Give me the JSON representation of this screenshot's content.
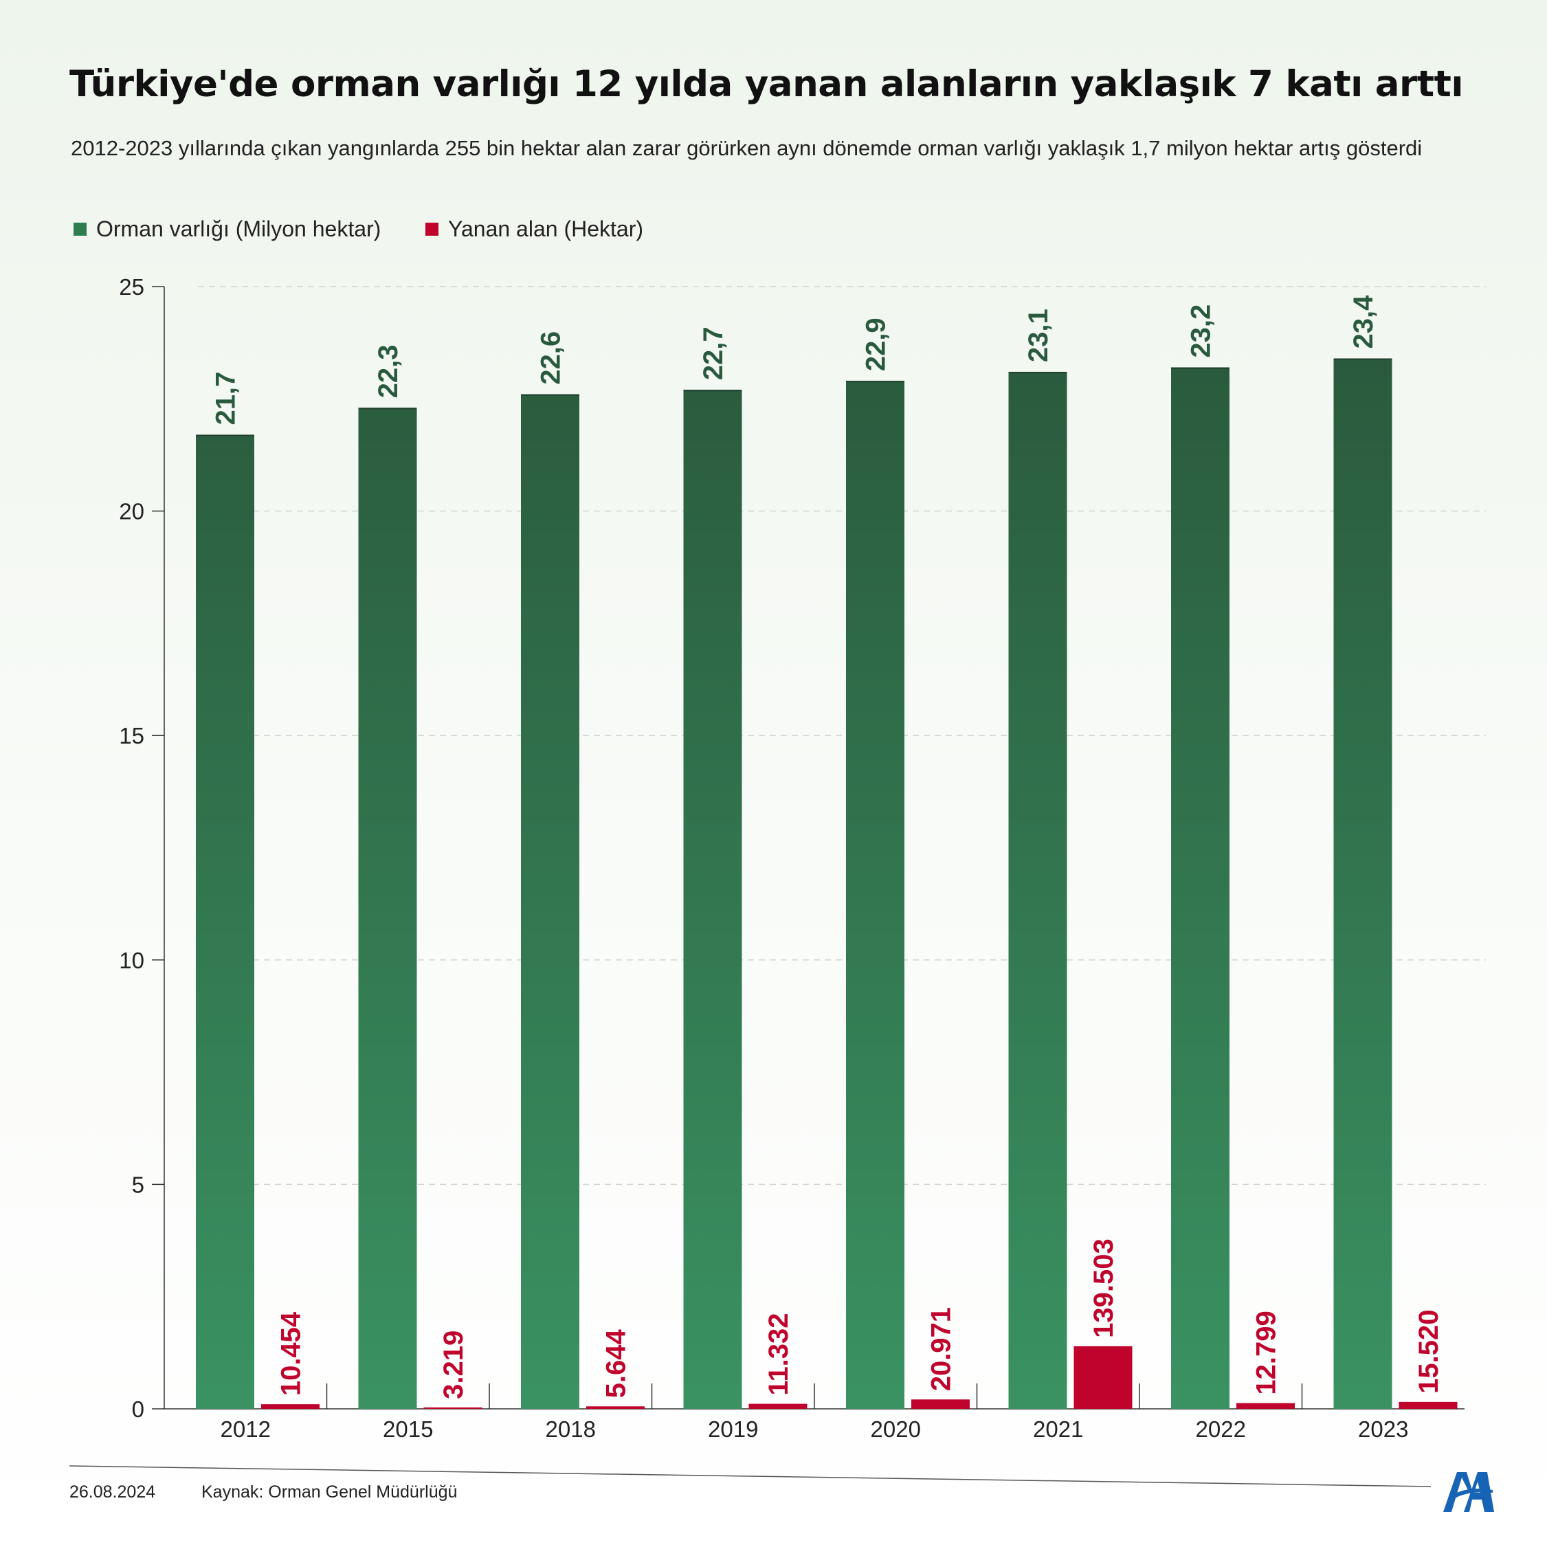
{
  "chart_data": {
    "type": "bar",
    "title": "Türkiye'de orman varlığı 12 yılda yanan alanların yaklaşık 7 katı arttı",
    "subtitle": "2012-2023 yıllarında çıkan yangınlarda 255 bin hektar alan zarar görürken aynı dönemde orman varlığı yaklaşık 1,7 milyon hektar artış gösterdi",
    "categories": [
      "2012",
      "2015",
      "2018",
      "2019",
      "2020",
      "2021",
      "2022",
      "2023"
    ],
    "series": [
      {
        "name": "Orman varlığı (Milyon hektar)",
        "values": [
          21.7,
          22.3,
          22.6,
          22.7,
          22.9,
          23.1,
          23.2,
          23.4
        ],
        "labels": [
          "21,7",
          "22,3",
          "22,6",
          "22,7",
          "22,9",
          "23,1",
          "23,2",
          "23,4"
        ],
        "color": "#2e6b45"
      },
      {
        "name": "Yanan alan (Hektar)",
        "values": [
          10454,
          3219,
          5644,
          11332,
          20971,
          139503,
          12799,
          15520
        ],
        "labels": [
          "10.454",
          "3.219",
          "5.644",
          "11.332",
          "20.971",
          "139.503",
          "12.799",
          "15.520"
        ],
        "color": "#c0032c"
      }
    ],
    "ylim": [
      0,
      25
    ],
    "yticks": [
      0,
      5,
      10,
      15,
      20,
      25
    ],
    "grid": true,
    "legend_position": "top-left"
  },
  "footer": {
    "date": "26.08.2024",
    "source": "Kaynak: Orman Genel Müdürlüğü"
  },
  "colors": {
    "green_top": "#2a5a3d",
    "green_bottom": "#3a9262",
    "red": "#c0032c",
    "green_label": "#2a5a3d",
    "logo": "#1763b5"
  },
  "logo_icon": "aa-logo-icon"
}
